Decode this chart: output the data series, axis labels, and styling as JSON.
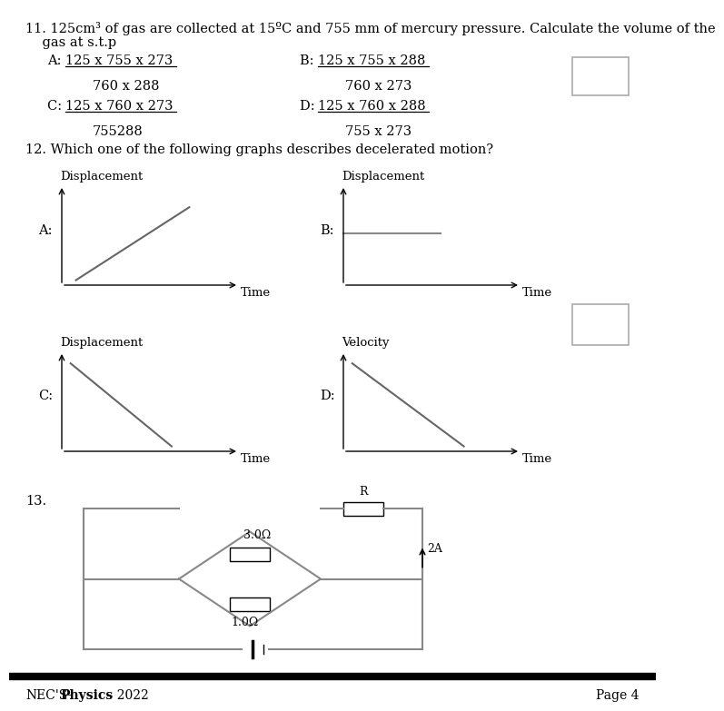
{
  "bg_color": "#ffffff",
  "q11_line1": "11. 125cm³ of gas are collected at 15ºC and 755 mm of mercury pressure. Calculate the volume of the",
  "q11_line2": "    gas at s.t.p",
  "q11_A_label": "A: ",
  "q11_A_num": "125 x 755 x 273",
  "q11_A_den": "760 x 288",
  "q11_B_label": "B: ",
  "q11_B_num": "125 x 755 x 288",
  "q11_B_den": "760 x 273",
  "q11_C_label": "C: ",
  "q11_C_num": "125 x 760 x 273",
  "q11_C_den": "755288",
  "q11_D_label": "D: ",
  "q11_D_num": "125 x 760 x 288",
  "q11_D_den": "755 x 273",
  "q12_text": "12. Which one of the following graphs describes decelerated motion?",
  "q13_label": "13.",
  "footer_left1": "NEC'S-",
  "footer_left2": "Physics",
  "footer_left3": " – 2022",
  "footer_page": "Page 4",
  "graph_A_ylabel": "Displacement",
  "graph_A_xlabel": "Time",
  "graph_A_label": "A:",
  "graph_B_ylabel": "Displacement",
  "graph_B_xlabel": "Time",
  "graph_B_label": "B:",
  "graph_C_ylabel": "Displacement",
  "graph_C_xlabel": "Time",
  "graph_C_label": "C:",
  "graph_D_ylabel": "Velocity",
  "graph_D_xlabel": "Time",
  "graph_D_label": "D:",
  "line_color": "#888888",
  "graph_line_color": "#666666",
  "box_color": "#aaaaaa"
}
